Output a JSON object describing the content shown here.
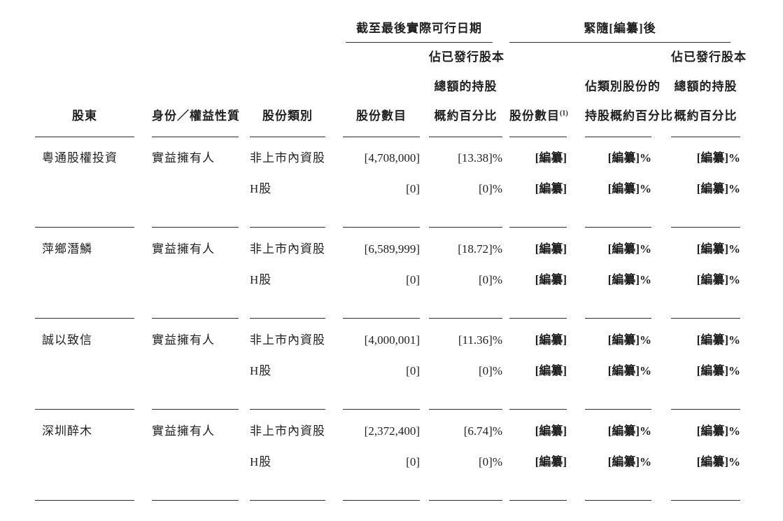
{
  "table": {
    "group_headers": {
      "as_at_latest_practicable_date": "截至最後實際可行日期",
      "immediately_following_redacted": "緊隨[編纂]後"
    },
    "columns": {
      "shareholder": {
        "lines": [
          "股東"
        ]
      },
      "identity_nature": {
        "lines": [
          "身份／權益性質"
        ]
      },
      "share_class": {
        "lines": [
          "股份類別"
        ]
      },
      "num_shares": {
        "lines": [
          "股份數目"
        ]
      },
      "pct_total_issued": {
        "lines": [
          "佔已發行股本",
          "總額的持股",
          "概約百分比"
        ]
      },
      "post_num_shares": {
        "lines": [
          "股份數目"
        ],
        "sup": "(1)"
      },
      "post_pct_class": {
        "lines": [
          "佔類別股份的",
          "持股概約百分比"
        ]
      },
      "post_pct_total": {
        "lines": [
          "佔已發行股本",
          "總額的持股",
          "概約百分比"
        ]
      }
    },
    "rows": [
      {
        "shareholder": "粵通股權投資",
        "identity": "實益擁有人",
        "lines": [
          {
            "share_class": "非上市內資股",
            "num_shares": "[4,708,000]",
            "pct_total": "[13.38]%",
            "post_num": "[編纂]",
            "post_class_pct": "[編纂]%",
            "post_total_pct": "[編纂]%"
          },
          {
            "share_class": "H股",
            "num_shares": "[0]",
            "pct_total": "[0]%",
            "post_num": "[編纂]",
            "post_class_pct": "[編纂]%",
            "post_total_pct": "[編纂]%"
          }
        ]
      },
      {
        "shareholder": "萍鄉潛鱗",
        "identity": "實益擁有人",
        "lines": [
          {
            "share_class": "非上市內資股",
            "num_shares": "[6,589,999]",
            "pct_total": "[18.72]%",
            "post_num": "[編纂]",
            "post_class_pct": "[編纂]%",
            "post_total_pct": "[編纂]%"
          },
          {
            "share_class": "H股",
            "num_shares": "[0]",
            "pct_total": "[0]%",
            "post_num": "[編纂]",
            "post_class_pct": "[編纂]%",
            "post_total_pct": "[編纂]%"
          }
        ]
      },
      {
        "shareholder": "誠以致信",
        "identity": "實益擁有人",
        "lines": [
          {
            "share_class": "非上市內資股",
            "num_shares": "[4,000,001]",
            "pct_total": "[11.36]%",
            "post_num": "[編纂]",
            "post_class_pct": "[編纂]%",
            "post_total_pct": "[編纂]%"
          },
          {
            "share_class": "H股",
            "num_shares": "[0]",
            "pct_total": "[0]%",
            "post_num": "[編纂]",
            "post_class_pct": "[編纂]%",
            "post_total_pct": "[編纂]%"
          }
        ]
      },
      {
        "shareholder": "深圳醉木",
        "identity": "實益擁有人",
        "lines": [
          {
            "share_class": "非上市內資股",
            "num_shares": "[2,372,400]",
            "pct_total": "[6.74]%",
            "post_num": "[編纂]",
            "post_class_pct": "[編纂]%",
            "post_total_pct": "[編纂]%"
          },
          {
            "share_class": "H股",
            "num_shares": "[0]",
            "pct_total": "[0]%",
            "post_num": "[編纂]",
            "post_class_pct": "[編纂]%",
            "post_total_pct": "[編纂]%"
          }
        ]
      }
    ]
  }
}
